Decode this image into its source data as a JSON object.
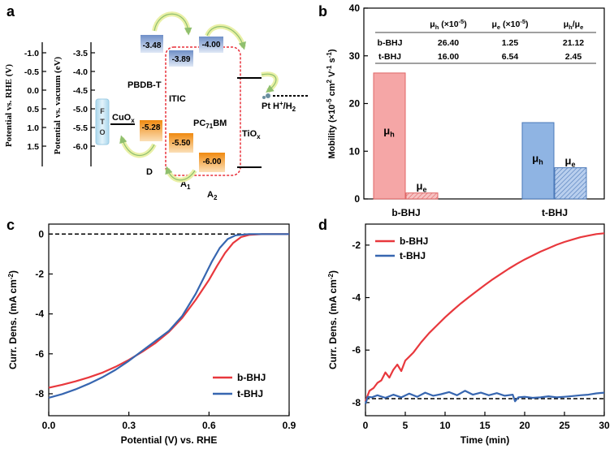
{
  "panels": {
    "a": "a",
    "b": "b",
    "c": "c",
    "d": "d"
  },
  "panel_a": {
    "axis_rhe_label": "Potential vs. RHE (V)",
    "axis_vac_label": "Potential vs. vacuum (eV)",
    "rhe_ticks": [
      "-1.0",
      "-0.5",
      "0.0",
      "0.5",
      "1.0",
      "1.5"
    ],
    "vac_ticks": [
      "-3.5",
      "-4.0",
      "-4.5",
      "-5.0",
      "-5.5",
      "-6.0"
    ],
    "fto": [
      "F",
      "T",
      "O"
    ],
    "cuox": "CuO",
    "cuox_sub": "x",
    "pbdbt": "PBDB-T",
    "itic": "ITIC",
    "pcbm_pre": "PC",
    "pcbm_sub": "71",
    "pcbm_post": "BM",
    "tiox": "TiO",
    "tiox_sub": "x",
    "pt": "Pt H",
    "pt_sup": "+",
    "pt_post": "/H",
    "pt_sub": "2",
    "donor": "D",
    "a1": "A",
    "a1_sub": "1",
    "a2": "A",
    "a2_sub": "2",
    "levels": {
      "pbdbt_lumo": "-3.48",
      "itic_lumo": "-3.89",
      "pcbm_lumo": "-4.00",
      "pbdbt_homo": "-5.28",
      "itic_homo": "-5.50",
      "pcbm_homo": "-6.00"
    },
    "colors": {
      "lumo": "#8da9d6",
      "homo": "#f39a1e",
      "fto": "#bfe0f0",
      "dashed_box": "#e8303a",
      "arrow": "#e9f0a6"
    }
  },
  "chart_data": [
    {
      "panel": "b",
      "type": "bar",
      "ylabel_main": "Mobility (×10",
      "ylabel_exp": "-5",
      "ylabel_mid": " cm",
      "ylabel_exp2": "2",
      "ylabel_mid2": " V",
      "ylabel_exp3": "-1",
      "ylabel_mid3": " s",
      "ylabel_exp4": "-1",
      "ylabel_end": ")",
      "ylim": [
        0,
        40
      ],
      "yticks": [
        "0",
        "10",
        "20",
        "30",
        "40"
      ],
      "categories": [
        "b-BHJ",
        "t-BHJ"
      ],
      "series": [
        {
          "name": "μh",
          "values": [
            26.4,
            16.0
          ]
        },
        {
          "name": "μe",
          "values": [
            1.25,
            6.54
          ]
        }
      ],
      "bar_label_h": "μ",
      "bar_label_h_sub": "h",
      "bar_label_e": "μ",
      "bar_label_e_sub": "e",
      "table": {
        "header": [
          "μh (×10-5)",
          "μe (×10-5)",
          "μh/μe"
        ],
        "header_parts": [
          {
            "a": "μ",
            "sub": "h",
            "b": " (×10",
            "sup": "-5",
            "c": ")"
          },
          {
            "a": "μ",
            "sub": "e",
            "b": " (×10",
            "sup": "-5",
            "c": ")"
          },
          {
            "a": "μ",
            "sub": "h",
            "b": "/μ",
            "sub2": "e"
          }
        ],
        "rows": [
          [
            "b-BHJ",
            "26.40",
            "1.25",
            "21.12"
          ],
          [
            "t-BHJ",
            "16.00",
            "6.54",
            "2.45"
          ]
        ]
      },
      "colors": {
        "b": "#f5a6a6",
        "b_edge": "#e06666",
        "t": "#8fb4e3",
        "t_edge": "#4a78b8"
      }
    },
    {
      "panel": "c",
      "type": "line",
      "xlabel": "Potential (V) vs. RHE",
      "ylabel_pre": "Curr. Dens. (mA cm",
      "ylabel_sup": "-2",
      "ylabel_post": ")",
      "xlim": [
        0.0,
        0.9
      ],
      "ylim": [
        -9.1,
        0.5
      ],
      "xticks": [
        "0.0",
        "0.3",
        "0.6",
        "0.9"
      ],
      "yticks": [
        "0",
        "-2",
        "-4",
        "-6",
        "-8"
      ],
      "series": [
        {
          "name": "b-BHJ",
          "color": "#e8383d",
          "x": [
            0.0,
            0.05,
            0.1,
            0.15,
            0.2,
            0.25,
            0.3,
            0.35,
            0.4,
            0.45,
            0.5,
            0.55,
            0.6,
            0.63,
            0.66,
            0.69,
            0.72,
            0.75,
            0.8,
            0.85,
            0.9
          ],
          "y": [
            -7.7,
            -7.55,
            -7.38,
            -7.18,
            -6.95,
            -6.65,
            -6.3,
            -5.9,
            -5.45,
            -4.9,
            -4.2,
            -3.3,
            -2.3,
            -1.6,
            -0.95,
            -0.45,
            -0.15,
            -0.04,
            0.0,
            0.0,
            0.0
          ]
        },
        {
          "name": "t-BHJ",
          "color": "#3766b0",
          "x": [
            0.0,
            0.05,
            0.1,
            0.15,
            0.2,
            0.25,
            0.3,
            0.35,
            0.4,
            0.45,
            0.5,
            0.55,
            0.58,
            0.61,
            0.64,
            0.67,
            0.7,
            0.75,
            0.8,
            0.85,
            0.9
          ],
          "y": [
            -8.2,
            -8.02,
            -7.78,
            -7.5,
            -7.18,
            -6.8,
            -6.35,
            -5.85,
            -5.35,
            -4.85,
            -4.1,
            -3.0,
            -2.2,
            -1.4,
            -0.7,
            -0.25,
            -0.06,
            0.0,
            0.0,
            0.0,
            0.0
          ]
        }
      ],
      "reference_line": 0
    },
    {
      "panel": "d",
      "type": "line",
      "xlabel": "Time (min)",
      "ylabel_pre": "Curr. Dens. (mA cm",
      "ylabel_sup": "-2",
      "ylabel_post": ")",
      "xlim": [
        0,
        30
      ],
      "ylim": [
        -8.5,
        -1.2
      ],
      "xticks": [
        "0",
        "5",
        "10",
        "15",
        "20",
        "25",
        "30"
      ],
      "yticks": [
        "-2",
        "-4",
        "-6",
        "-8"
      ],
      "series": [
        {
          "name": "b-BHJ",
          "color": "#e8383d",
          "x": [
            0,
            0.5,
            1,
            1.5,
            2,
            2.5,
            3,
            3.5,
            4,
            4.5,
            5,
            5.5,
            6,
            7,
            8,
            9,
            10,
            11,
            12,
            13,
            14,
            15,
            16,
            17,
            18,
            19,
            20,
            21,
            22,
            23,
            24,
            25,
            26,
            27,
            28,
            29,
            30
          ],
          "y": [
            -7.95,
            -7.55,
            -7.45,
            -7.25,
            -7.15,
            -6.85,
            -7.05,
            -6.75,
            -6.55,
            -6.8,
            -6.4,
            -6.25,
            -6.1,
            -5.7,
            -5.35,
            -5.05,
            -4.75,
            -4.48,
            -4.22,
            -3.98,
            -3.75,
            -3.52,
            -3.3,
            -3.1,
            -2.9,
            -2.72,
            -2.55,
            -2.4,
            -2.25,
            -2.12,
            -1.99,
            -1.88,
            -1.79,
            -1.7,
            -1.64,
            -1.58,
            -1.55
          ]
        },
        {
          "name": "t-BHJ",
          "color": "#3766b0",
          "x": [
            0,
            0.3,
            0.8,
            1.5,
            2.5,
            3.5,
            4.5,
            5.5,
            6.5,
            7.5,
            8.5,
            9.5,
            10.5,
            11.5,
            12.5,
            13.5,
            14.5,
            15.5,
            16.5,
            17.5,
            18.5,
            18.8,
            19.2,
            20,
            21,
            22,
            23,
            24,
            25,
            26,
            27,
            28,
            29,
            30
          ],
          "y": [
            -8.05,
            -7.78,
            -7.8,
            -7.72,
            -7.82,
            -7.7,
            -7.8,
            -7.66,
            -7.78,
            -7.62,
            -7.74,
            -7.68,
            -7.6,
            -7.72,
            -7.55,
            -7.7,
            -7.62,
            -7.72,
            -7.64,
            -7.74,
            -7.7,
            -7.95,
            -7.8,
            -7.78,
            -7.82,
            -7.8,
            -7.76,
            -7.8,
            -7.78,
            -7.75,
            -7.72,
            -7.7,
            -7.65,
            -7.62
          ]
        }
      ],
      "reference_line": -7.85
    }
  ]
}
